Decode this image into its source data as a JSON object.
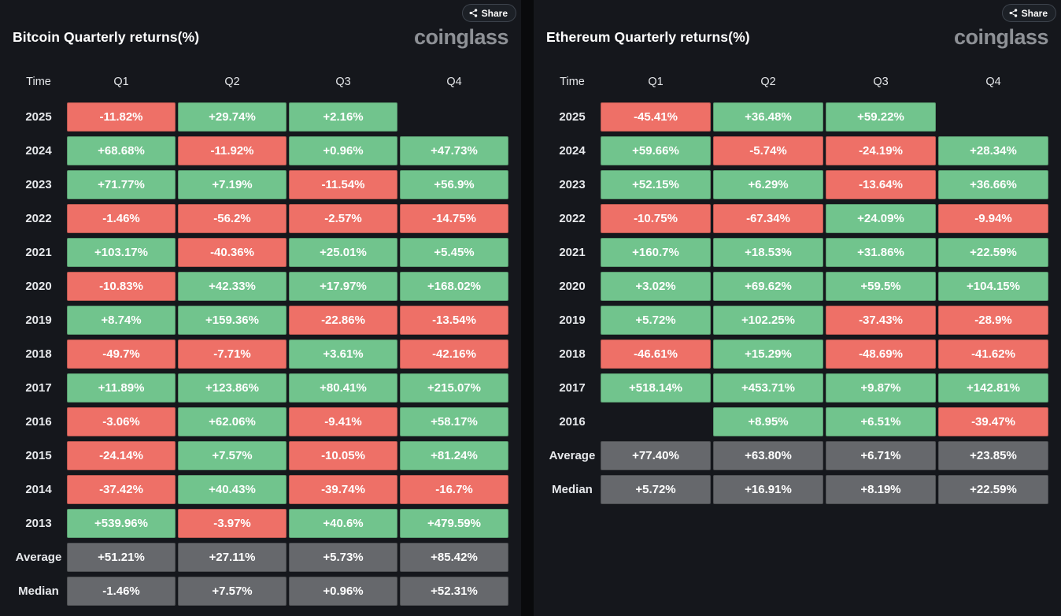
{
  "brand": "coinglass",
  "share_label": "Share",
  "colors": {
    "positive": "#71c48d",
    "negative": "#ee7067",
    "summary": "#66686c",
    "panel_bg": "#15171c",
    "page_bg": "#090a0c"
  },
  "chart_data": [
    {
      "type": "table",
      "title": "Bitcoin Quarterly returns(%)",
      "columns": [
        "Time",
        "Q1",
        "Q2",
        "Q3",
        "Q4"
      ],
      "rows": [
        {
          "label": "2025",
          "cells": [
            {
              "value": "-11.82%",
              "kind": "negative"
            },
            {
              "value": "+29.74%",
              "kind": "positive"
            },
            {
              "value": "+2.16%",
              "kind": "positive"
            },
            {
              "value": "",
              "kind": "empty"
            }
          ]
        },
        {
          "label": "2024",
          "cells": [
            {
              "value": "+68.68%",
              "kind": "positive"
            },
            {
              "value": "-11.92%",
              "kind": "negative"
            },
            {
              "value": "+0.96%",
              "kind": "positive"
            },
            {
              "value": "+47.73%",
              "kind": "positive"
            }
          ]
        },
        {
          "label": "2023",
          "cells": [
            {
              "value": "+71.77%",
              "kind": "positive"
            },
            {
              "value": "+7.19%",
              "kind": "positive"
            },
            {
              "value": "-11.54%",
              "kind": "negative"
            },
            {
              "value": "+56.9%",
              "kind": "positive"
            }
          ]
        },
        {
          "label": "2022",
          "cells": [
            {
              "value": "-1.46%",
              "kind": "negative"
            },
            {
              "value": "-56.2%",
              "kind": "negative"
            },
            {
              "value": "-2.57%",
              "kind": "negative"
            },
            {
              "value": "-14.75%",
              "kind": "negative"
            }
          ]
        },
        {
          "label": "2021",
          "cells": [
            {
              "value": "+103.17%",
              "kind": "positive"
            },
            {
              "value": "-40.36%",
              "kind": "negative"
            },
            {
              "value": "+25.01%",
              "kind": "positive"
            },
            {
              "value": "+5.45%",
              "kind": "positive"
            }
          ]
        },
        {
          "label": "2020",
          "cells": [
            {
              "value": "-10.83%",
              "kind": "negative"
            },
            {
              "value": "+42.33%",
              "kind": "positive"
            },
            {
              "value": "+17.97%",
              "kind": "positive"
            },
            {
              "value": "+168.02%",
              "kind": "positive"
            }
          ]
        },
        {
          "label": "2019",
          "cells": [
            {
              "value": "+8.74%",
              "kind": "positive"
            },
            {
              "value": "+159.36%",
              "kind": "positive"
            },
            {
              "value": "-22.86%",
              "kind": "negative"
            },
            {
              "value": "-13.54%",
              "kind": "negative"
            }
          ]
        },
        {
          "label": "2018",
          "cells": [
            {
              "value": "-49.7%",
              "kind": "negative"
            },
            {
              "value": "-7.71%",
              "kind": "negative"
            },
            {
              "value": "+3.61%",
              "kind": "positive"
            },
            {
              "value": "-42.16%",
              "kind": "negative"
            }
          ]
        },
        {
          "label": "2017",
          "cells": [
            {
              "value": "+11.89%",
              "kind": "positive"
            },
            {
              "value": "+123.86%",
              "kind": "positive"
            },
            {
              "value": "+80.41%",
              "kind": "positive"
            },
            {
              "value": "+215.07%",
              "kind": "positive"
            }
          ]
        },
        {
          "label": "2016",
          "cells": [
            {
              "value": "-3.06%",
              "kind": "negative"
            },
            {
              "value": "+62.06%",
              "kind": "positive"
            },
            {
              "value": "-9.41%",
              "kind": "negative"
            },
            {
              "value": "+58.17%",
              "kind": "positive"
            }
          ]
        },
        {
          "label": "2015",
          "cells": [
            {
              "value": "-24.14%",
              "kind": "negative"
            },
            {
              "value": "+7.57%",
              "kind": "positive"
            },
            {
              "value": "-10.05%",
              "kind": "negative"
            },
            {
              "value": "+81.24%",
              "kind": "positive"
            }
          ]
        },
        {
          "label": "2014",
          "cells": [
            {
              "value": "-37.42%",
              "kind": "negative"
            },
            {
              "value": "+40.43%",
              "kind": "positive"
            },
            {
              "value": "-39.74%",
              "kind": "negative"
            },
            {
              "value": "-16.7%",
              "kind": "negative"
            }
          ]
        },
        {
          "label": "2013",
          "cells": [
            {
              "value": "+539.96%",
              "kind": "positive"
            },
            {
              "value": "-3.97%",
              "kind": "negative"
            },
            {
              "value": "+40.6%",
              "kind": "positive"
            },
            {
              "value": "+479.59%",
              "kind": "positive"
            }
          ]
        },
        {
          "label": "Average",
          "cells": [
            {
              "value": "+51.21%",
              "kind": "summary"
            },
            {
              "value": "+27.11%",
              "kind": "summary"
            },
            {
              "value": "+5.73%",
              "kind": "summary"
            },
            {
              "value": "+85.42%",
              "kind": "summary"
            }
          ]
        },
        {
          "label": "Median",
          "cells": [
            {
              "value": "-1.46%",
              "kind": "summary"
            },
            {
              "value": "+7.57%",
              "kind": "summary"
            },
            {
              "value": "+0.96%",
              "kind": "summary"
            },
            {
              "value": "+52.31%",
              "kind": "summary"
            }
          ]
        }
      ]
    },
    {
      "type": "table",
      "title": "Ethereum Quarterly returns(%)",
      "columns": [
        "Time",
        "Q1",
        "Q2",
        "Q3",
        "Q4"
      ],
      "rows": [
        {
          "label": "2025",
          "cells": [
            {
              "value": "-45.41%",
              "kind": "negative"
            },
            {
              "value": "+36.48%",
              "kind": "positive"
            },
            {
              "value": "+59.22%",
              "kind": "positive"
            },
            {
              "value": "",
              "kind": "empty"
            }
          ]
        },
        {
          "label": "2024",
          "cells": [
            {
              "value": "+59.66%",
              "kind": "positive"
            },
            {
              "value": "-5.74%",
              "kind": "negative"
            },
            {
              "value": "-24.19%",
              "kind": "negative"
            },
            {
              "value": "+28.34%",
              "kind": "positive"
            }
          ]
        },
        {
          "label": "2023",
          "cells": [
            {
              "value": "+52.15%",
              "kind": "positive"
            },
            {
              "value": "+6.29%",
              "kind": "positive"
            },
            {
              "value": "-13.64%",
              "kind": "negative"
            },
            {
              "value": "+36.66%",
              "kind": "positive"
            }
          ]
        },
        {
          "label": "2022",
          "cells": [
            {
              "value": "-10.75%",
              "kind": "negative"
            },
            {
              "value": "-67.34%",
              "kind": "negative"
            },
            {
              "value": "+24.09%",
              "kind": "positive"
            },
            {
              "value": "-9.94%",
              "kind": "negative"
            }
          ]
        },
        {
          "label": "2021",
          "cells": [
            {
              "value": "+160.7%",
              "kind": "positive"
            },
            {
              "value": "+18.53%",
              "kind": "positive"
            },
            {
              "value": "+31.86%",
              "kind": "positive"
            },
            {
              "value": "+22.59%",
              "kind": "positive"
            }
          ]
        },
        {
          "label": "2020",
          "cells": [
            {
              "value": "+3.02%",
              "kind": "positive"
            },
            {
              "value": "+69.62%",
              "kind": "positive"
            },
            {
              "value": "+59.5%",
              "kind": "positive"
            },
            {
              "value": "+104.15%",
              "kind": "positive"
            }
          ]
        },
        {
          "label": "2019",
          "cells": [
            {
              "value": "+5.72%",
              "kind": "positive"
            },
            {
              "value": "+102.25%",
              "kind": "positive"
            },
            {
              "value": "-37.43%",
              "kind": "negative"
            },
            {
              "value": "-28.9%",
              "kind": "negative"
            }
          ]
        },
        {
          "label": "2018",
          "cells": [
            {
              "value": "-46.61%",
              "kind": "negative"
            },
            {
              "value": "+15.29%",
              "kind": "positive"
            },
            {
              "value": "-48.69%",
              "kind": "negative"
            },
            {
              "value": "-41.62%",
              "kind": "negative"
            }
          ]
        },
        {
          "label": "2017",
          "cells": [
            {
              "value": "+518.14%",
              "kind": "positive"
            },
            {
              "value": "+453.71%",
              "kind": "positive"
            },
            {
              "value": "+9.87%",
              "kind": "positive"
            },
            {
              "value": "+142.81%",
              "kind": "positive"
            }
          ]
        },
        {
          "label": "2016",
          "cells": [
            {
              "value": "",
              "kind": "empty"
            },
            {
              "value": "+8.95%",
              "kind": "positive"
            },
            {
              "value": "+6.51%",
              "kind": "positive"
            },
            {
              "value": "-39.47%",
              "kind": "negative"
            }
          ]
        },
        {
          "label": "Average",
          "cells": [
            {
              "value": "+77.40%",
              "kind": "summary"
            },
            {
              "value": "+63.80%",
              "kind": "summary"
            },
            {
              "value": "+6.71%",
              "kind": "summary"
            },
            {
              "value": "+23.85%",
              "kind": "summary"
            }
          ]
        },
        {
          "label": "Median",
          "cells": [
            {
              "value": "+5.72%",
              "kind": "summary"
            },
            {
              "value": "+16.91%",
              "kind": "summary"
            },
            {
              "value": "+8.19%",
              "kind": "summary"
            },
            {
              "value": "+22.59%",
              "kind": "summary"
            }
          ]
        }
      ]
    }
  ]
}
